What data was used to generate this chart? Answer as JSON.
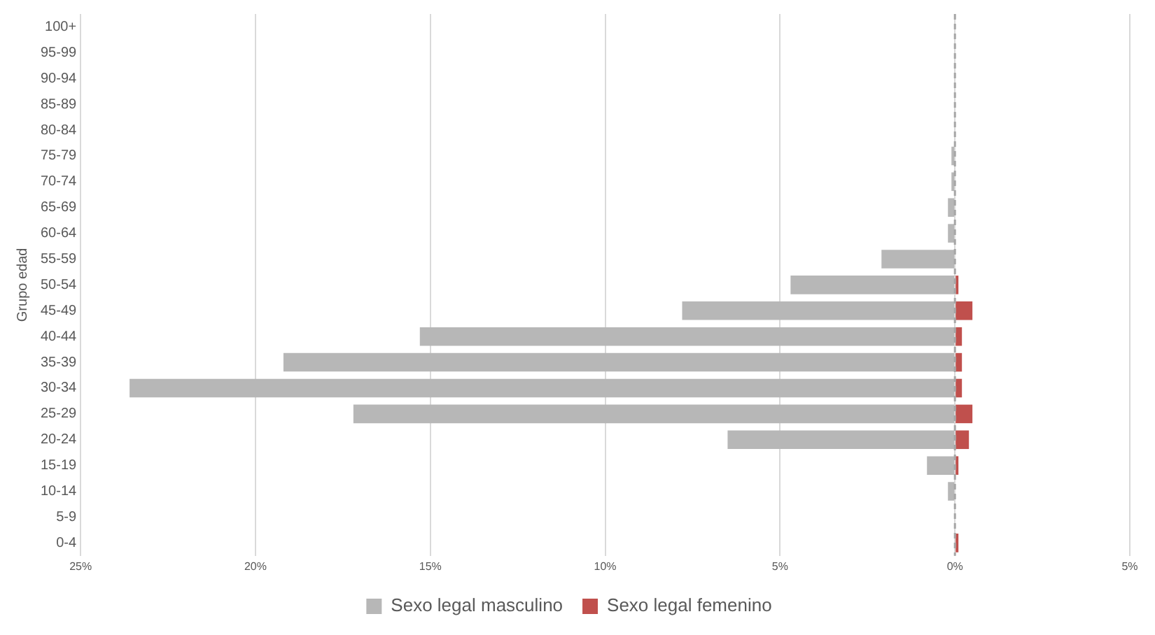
{
  "chart_data": {
    "type": "bar",
    "orientation": "horizontal",
    "stacked": true,
    "ylabel": "Grupo edad",
    "categories": [
      "100+",
      "95-99",
      "90-94",
      "85-89",
      "80-84",
      "75-79",
      "70-74",
      "65-69",
      "60-64",
      "55-59",
      "50-54",
      "45-49",
      "40-44",
      "35-39",
      "30-34",
      "25-29",
      "20-24",
      "15-19",
      "10-14",
      "5-9",
      "0-4"
    ],
    "series": [
      {
        "name": "Sexo legal masculino",
        "color": "#b7b7b7",
        "values": [
          0,
          0,
          0,
          0,
          0,
          -0.1,
          -0.1,
          -0.2,
          -0.2,
          -2.1,
          -4.7,
          -7.8,
          -15.3,
          -19.2,
          -23.6,
          -17.2,
          -6.5,
          -0.8,
          -0.2,
          0,
          0
        ]
      },
      {
        "name": "Sexo legal femenino",
        "color": "#c0504d",
        "values": [
          0,
          0,
          0,
          0,
          0,
          0,
          0,
          0,
          0,
          0,
          0.1,
          0.5,
          0.2,
          0.2,
          0.2,
          0.5,
          0.4,
          0.1,
          0,
          0,
          0.1
        ]
      }
    ],
    "xlim": [
      -25,
      5
    ],
    "xticks": [
      {
        "value": -25,
        "label": "25%"
      },
      {
        "value": -20,
        "label": "20%"
      },
      {
        "value": -15,
        "label": "15%"
      },
      {
        "value": -10,
        "label": "10%"
      },
      {
        "value": -5,
        "label": "5%"
      },
      {
        "value": 0,
        "label": "0%"
      },
      {
        "value": 5,
        "label": "5%"
      }
    ],
    "ref_lines": [
      {
        "axis": "x",
        "value": 0,
        "color": "#a6a6a6",
        "line_style": "dashed"
      }
    ],
    "grid": "x",
    "legend": "bottom"
  }
}
